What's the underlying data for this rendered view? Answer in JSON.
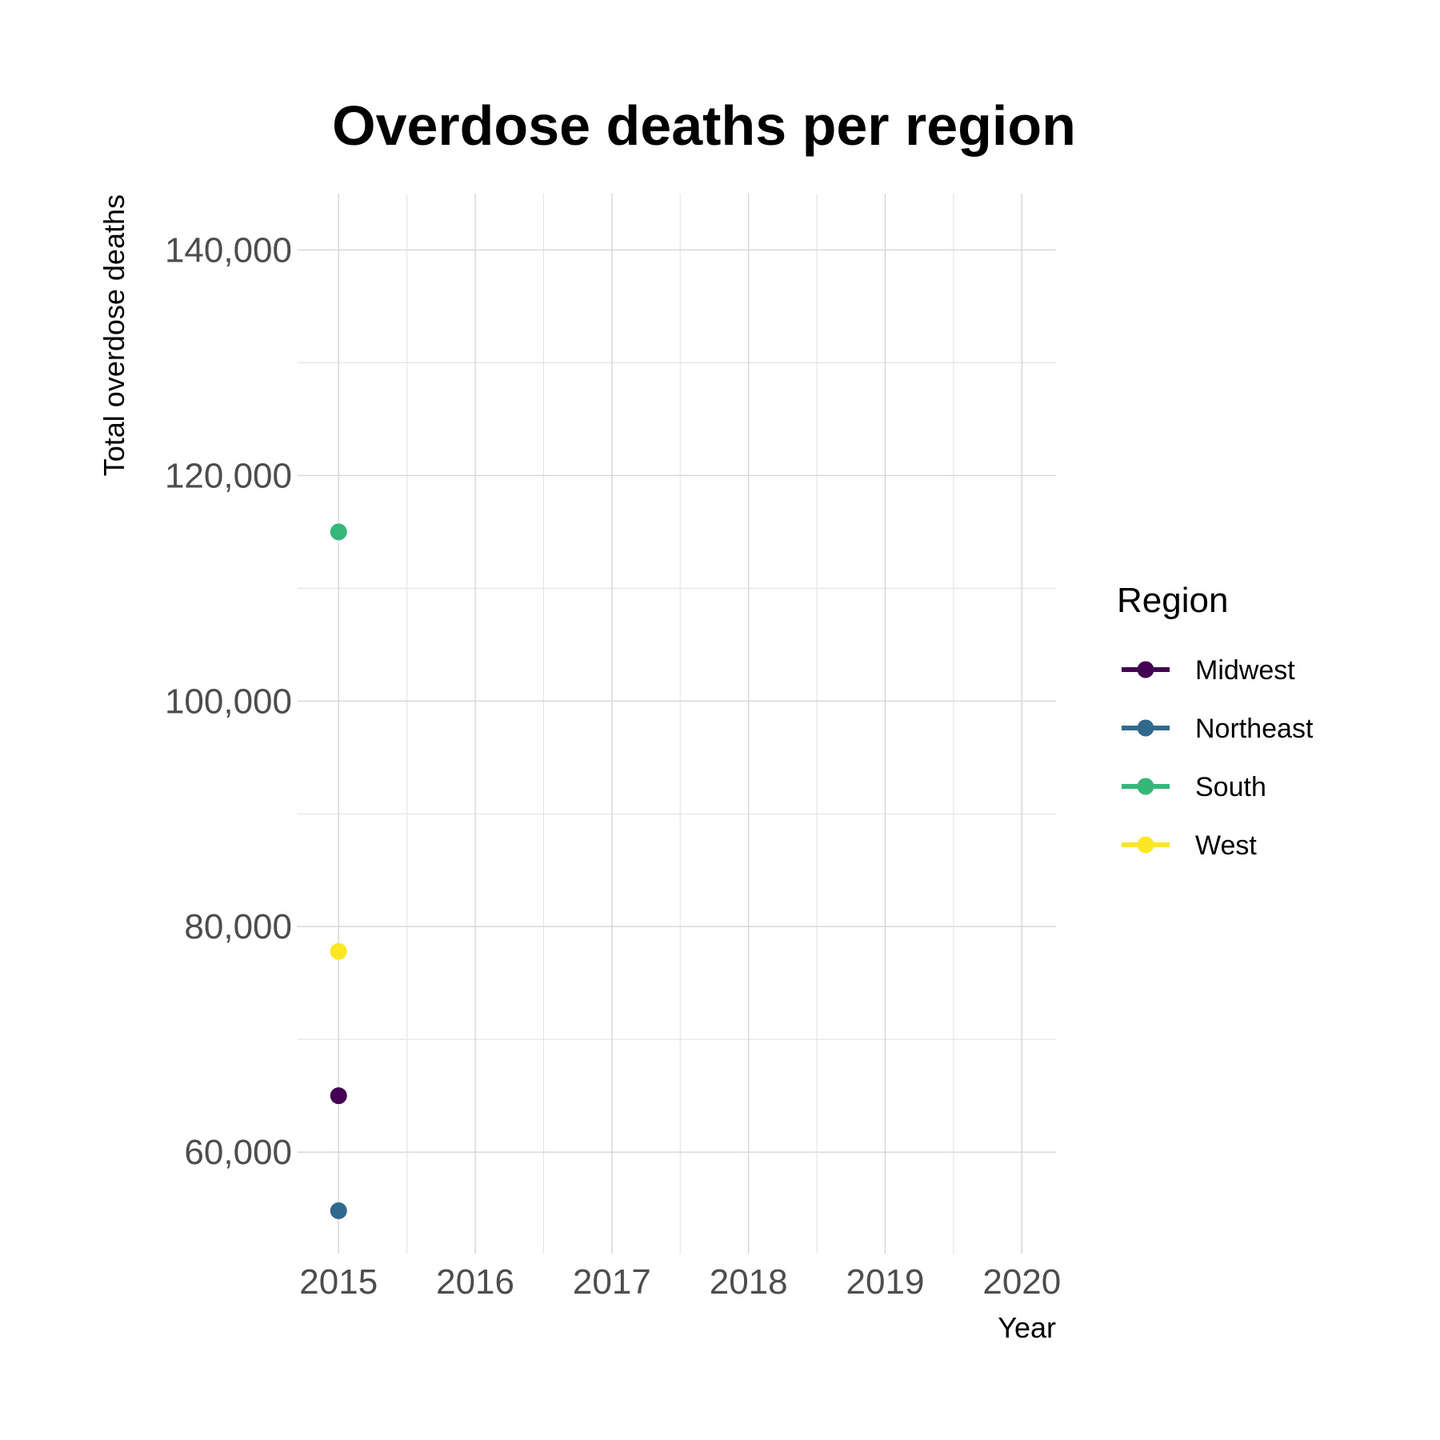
{
  "chart_data": {
    "type": "scatter",
    "title": "Overdose deaths per region",
    "xlabel": "Year",
    "ylabel": "Total overdose deaths",
    "x_ticks": [
      "2015",
      "2016",
      "2017",
      "2018",
      "2019",
      "2020"
    ],
    "y_ticks": [
      "60,000",
      "80,000",
      "100,000",
      "120,000",
      "140,000"
    ],
    "xlim": [
      2014.7,
      2020.25
    ],
    "ylim": [
      51000,
      145000
    ],
    "grid": true,
    "legend": {
      "title": "Region",
      "placement": "right"
    },
    "series": [
      {
        "name": "Midwest",
        "color": "#440154",
        "points": [
          {
            "x": 2015,
            "y": 65000
          }
        ]
      },
      {
        "name": "Northeast",
        "color": "#31688E",
        "points": [
          {
            "x": 2015,
            "y": 54800
          }
        ]
      },
      {
        "name": "South",
        "color": "#35B779",
        "points": [
          {
            "x": 2015,
            "y": 115000
          }
        ]
      },
      {
        "name": "West",
        "color": "#FDE725",
        "points": [
          {
            "x": 2015,
            "y": 77800
          }
        ]
      }
    ]
  }
}
